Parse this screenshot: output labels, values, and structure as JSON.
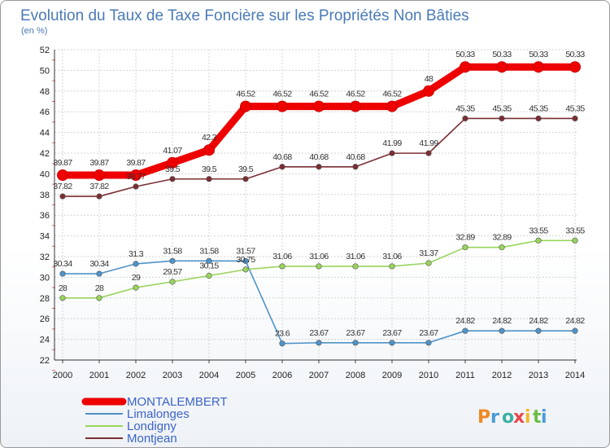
{
  "chart_data": {
    "type": "line",
    "title": "Evolution du Taux de Taxe Foncière sur les Propriétés Non Bâties",
    "ylabel": "(en %)",
    "xlabel": "",
    "x": [
      "2000",
      "2001",
      "2002",
      "2003",
      "2004",
      "2005",
      "2006",
      "2007",
      "2008",
      "2009",
      "2010",
      "2011",
      "2012",
      "2013",
      "2014"
    ],
    "ylim": [
      22,
      52
    ],
    "yticks": [
      "22",
      "24",
      "26",
      "28",
      "30",
      "32",
      "34",
      "36",
      "38",
      "40",
      "42",
      "44",
      "46",
      "48",
      "50",
      "52"
    ],
    "grid": true,
    "legend_position": "bottom-left",
    "series": [
      {
        "name": "MONTALEMBERT",
        "color": "#ee0000",
        "values": [
          39.87,
          39.87,
          39.87,
          41.07,
          42.3,
          46.52,
          46.52,
          46.52,
          46.52,
          46.52,
          48,
          50.33,
          50.33,
          50.33,
          50.33
        ],
        "labels": [
          "39.87",
          "39.87",
          "39.87",
          "41.07",
          "42.3",
          "46.52",
          "46.52",
          "46.52",
          "46.52",
          "46.52",
          "48",
          "50.33",
          "50.33",
          "50.33",
          "50.33"
        ]
      },
      {
        "name": "Limalonges",
        "color": "#4f93c8",
        "values": [
          30.34,
          30.34,
          31.3,
          31.58,
          31.58,
          31.57,
          23.6,
          23.67,
          23.67,
          23.67,
          23.67,
          24.82,
          24.82,
          24.82,
          24.82
        ],
        "labels": [
          "30.34",
          "30.34",
          "31.3",
          "31.58",
          "31.58",
          "31.57",
          "23.6",
          "23.67",
          "23.67",
          "23.67",
          "23.67",
          "24.82",
          "24.82",
          "24.82",
          "24.82"
        ]
      },
      {
        "name": "Londigny",
        "color": "#99d45c",
        "values": [
          28,
          28,
          29,
          29.57,
          30.15,
          30.75,
          31.06,
          31.06,
          31.06,
          31.06,
          31.37,
          32.89,
          32.89,
          33.55,
          33.55
        ],
        "labels": [
          "28",
          "28",
          "29",
          "29.57",
          "30.15",
          "30.75",
          "31.06",
          "31.06",
          "31.06",
          "31.06",
          "31.37",
          "32.89",
          "32.89",
          "33.55",
          "33.55"
        ]
      },
      {
        "name": "Montjean",
        "color": "#7a2e32",
        "values": [
          37.82,
          37.82,
          38.77,
          39.5,
          39.5,
          39.5,
          40.68,
          40.68,
          40.68,
          41.99,
          41.99,
          45.35,
          45.35,
          45.35,
          45.35
        ],
        "labels": [
          "37.82",
          "37.82",
          "38.77",
          "39.5",
          "39.5",
          "39.5",
          "40.68",
          "40.68",
          "40.68",
          "41.99",
          "41.99",
          "45.35",
          "45.35",
          "45.35",
          "45.35"
        ]
      }
    ]
  },
  "logo": {
    "text": "Proxiti"
  }
}
